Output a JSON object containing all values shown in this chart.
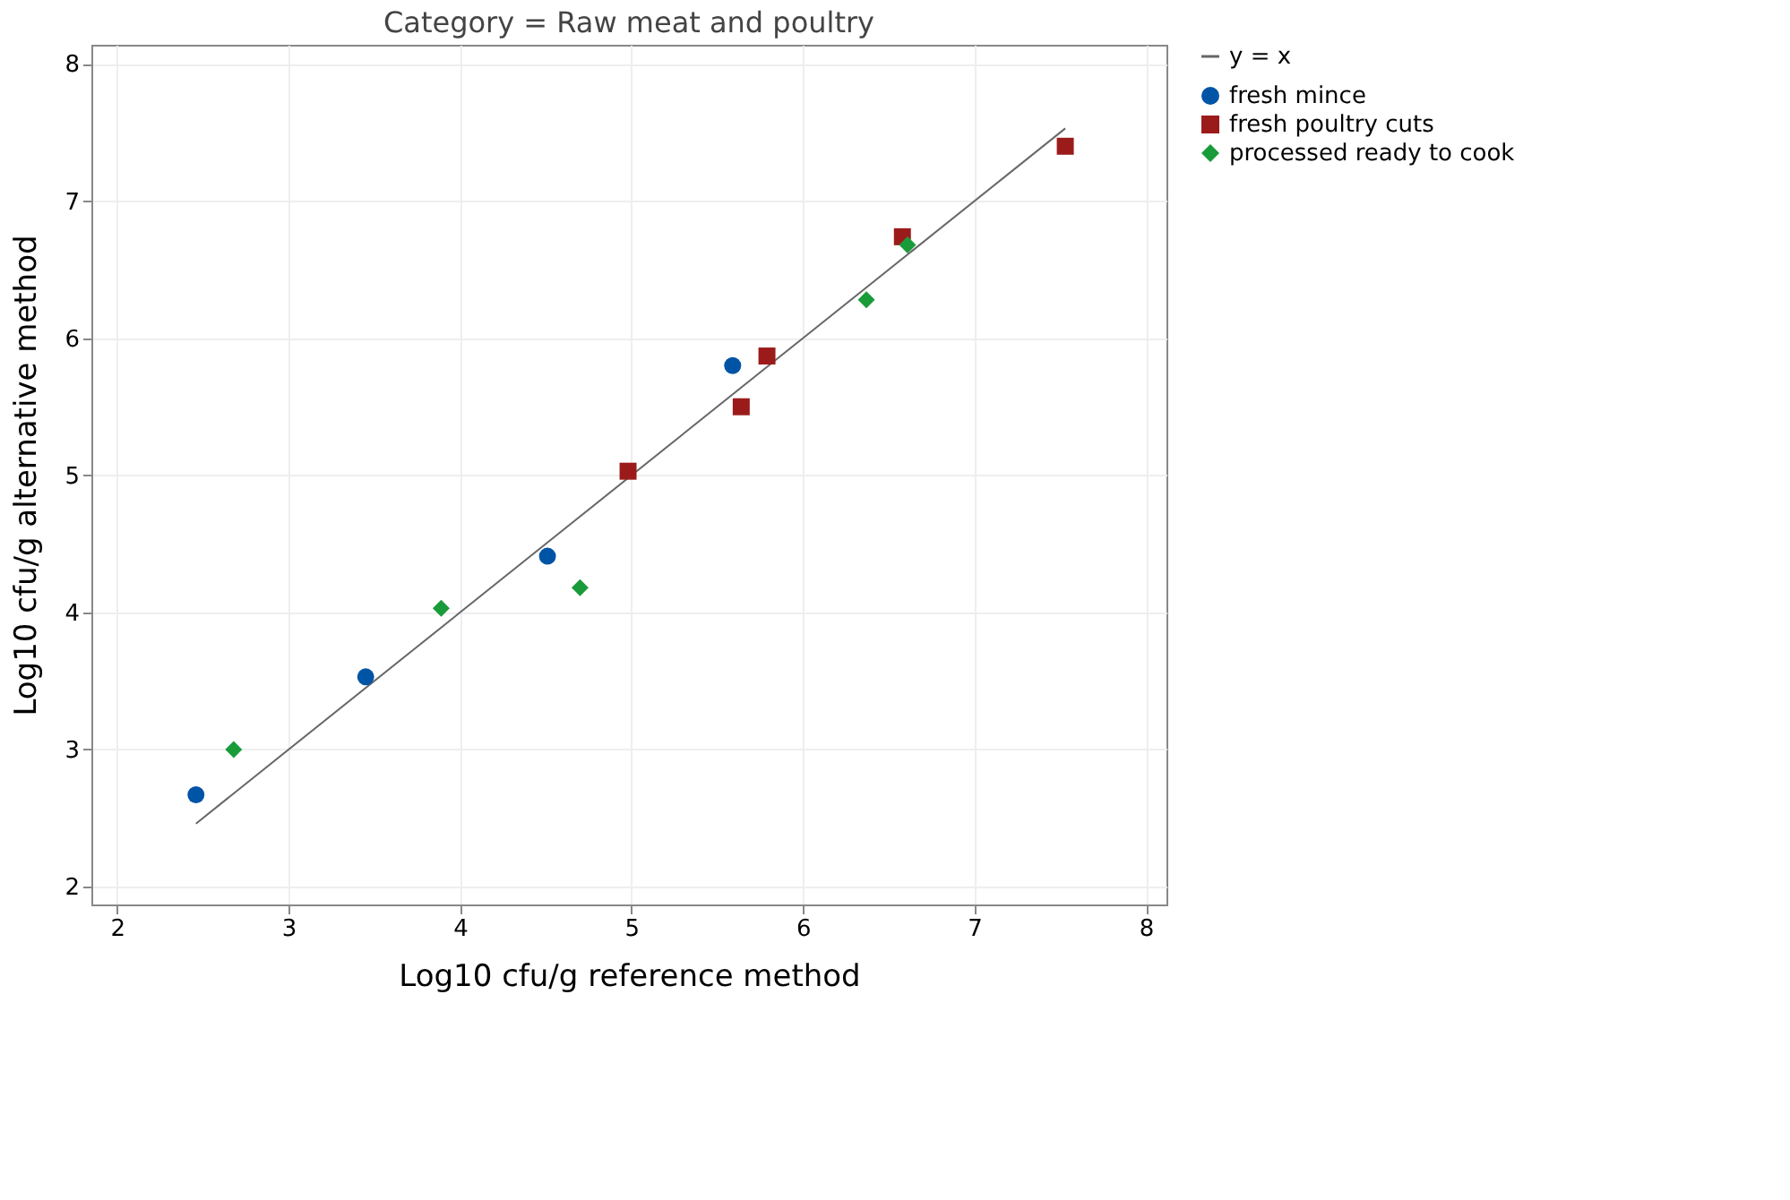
{
  "chart_data": {
    "type": "scatter",
    "title": "Category = Raw meat and poultry",
    "xlabel": "Log10 cfu/g reference method",
    "ylabel": "Log10 cfu/g alternative method",
    "xlim": [
      1.85,
      8.12
    ],
    "ylim": [
      1.87,
      8.14
    ],
    "xticks": [
      2,
      3,
      4,
      5,
      6,
      7,
      8
    ],
    "yticks": [
      2,
      3,
      4,
      5,
      6,
      7,
      8
    ],
    "grid": true,
    "legend": "right",
    "series": [
      {
        "name": "y = x",
        "type": "line",
        "color": "#666666",
        "marker": "none",
        "line_style": "solid",
        "x": [
          2.46,
          7.53
        ],
        "values": [
          2.46,
          7.53
        ]
      },
      {
        "name": "fresh mince",
        "color": "#0054a6",
        "marker": "circle",
        "x": [
          2.46,
          3.45,
          4.51,
          5.59
        ],
        "values": [
          2.67,
          3.53,
          4.41,
          5.8
        ]
      },
      {
        "name": "fresh poultry cuts",
        "color": "#9b1b1b",
        "marker": "square",
        "x": [
          4.98,
          5.64,
          5.79,
          6.58,
          7.53
        ],
        "values": [
          5.03,
          5.5,
          5.87,
          6.74,
          7.4
        ]
      },
      {
        "name": "processed ready to cook",
        "color": "#1a9b3a",
        "marker": "diamond",
        "x": [
          2.68,
          3.89,
          4.7,
          6.37,
          6.61
        ],
        "values": [
          3.0,
          4.03,
          4.18,
          6.28,
          6.68
        ]
      }
    ]
  }
}
